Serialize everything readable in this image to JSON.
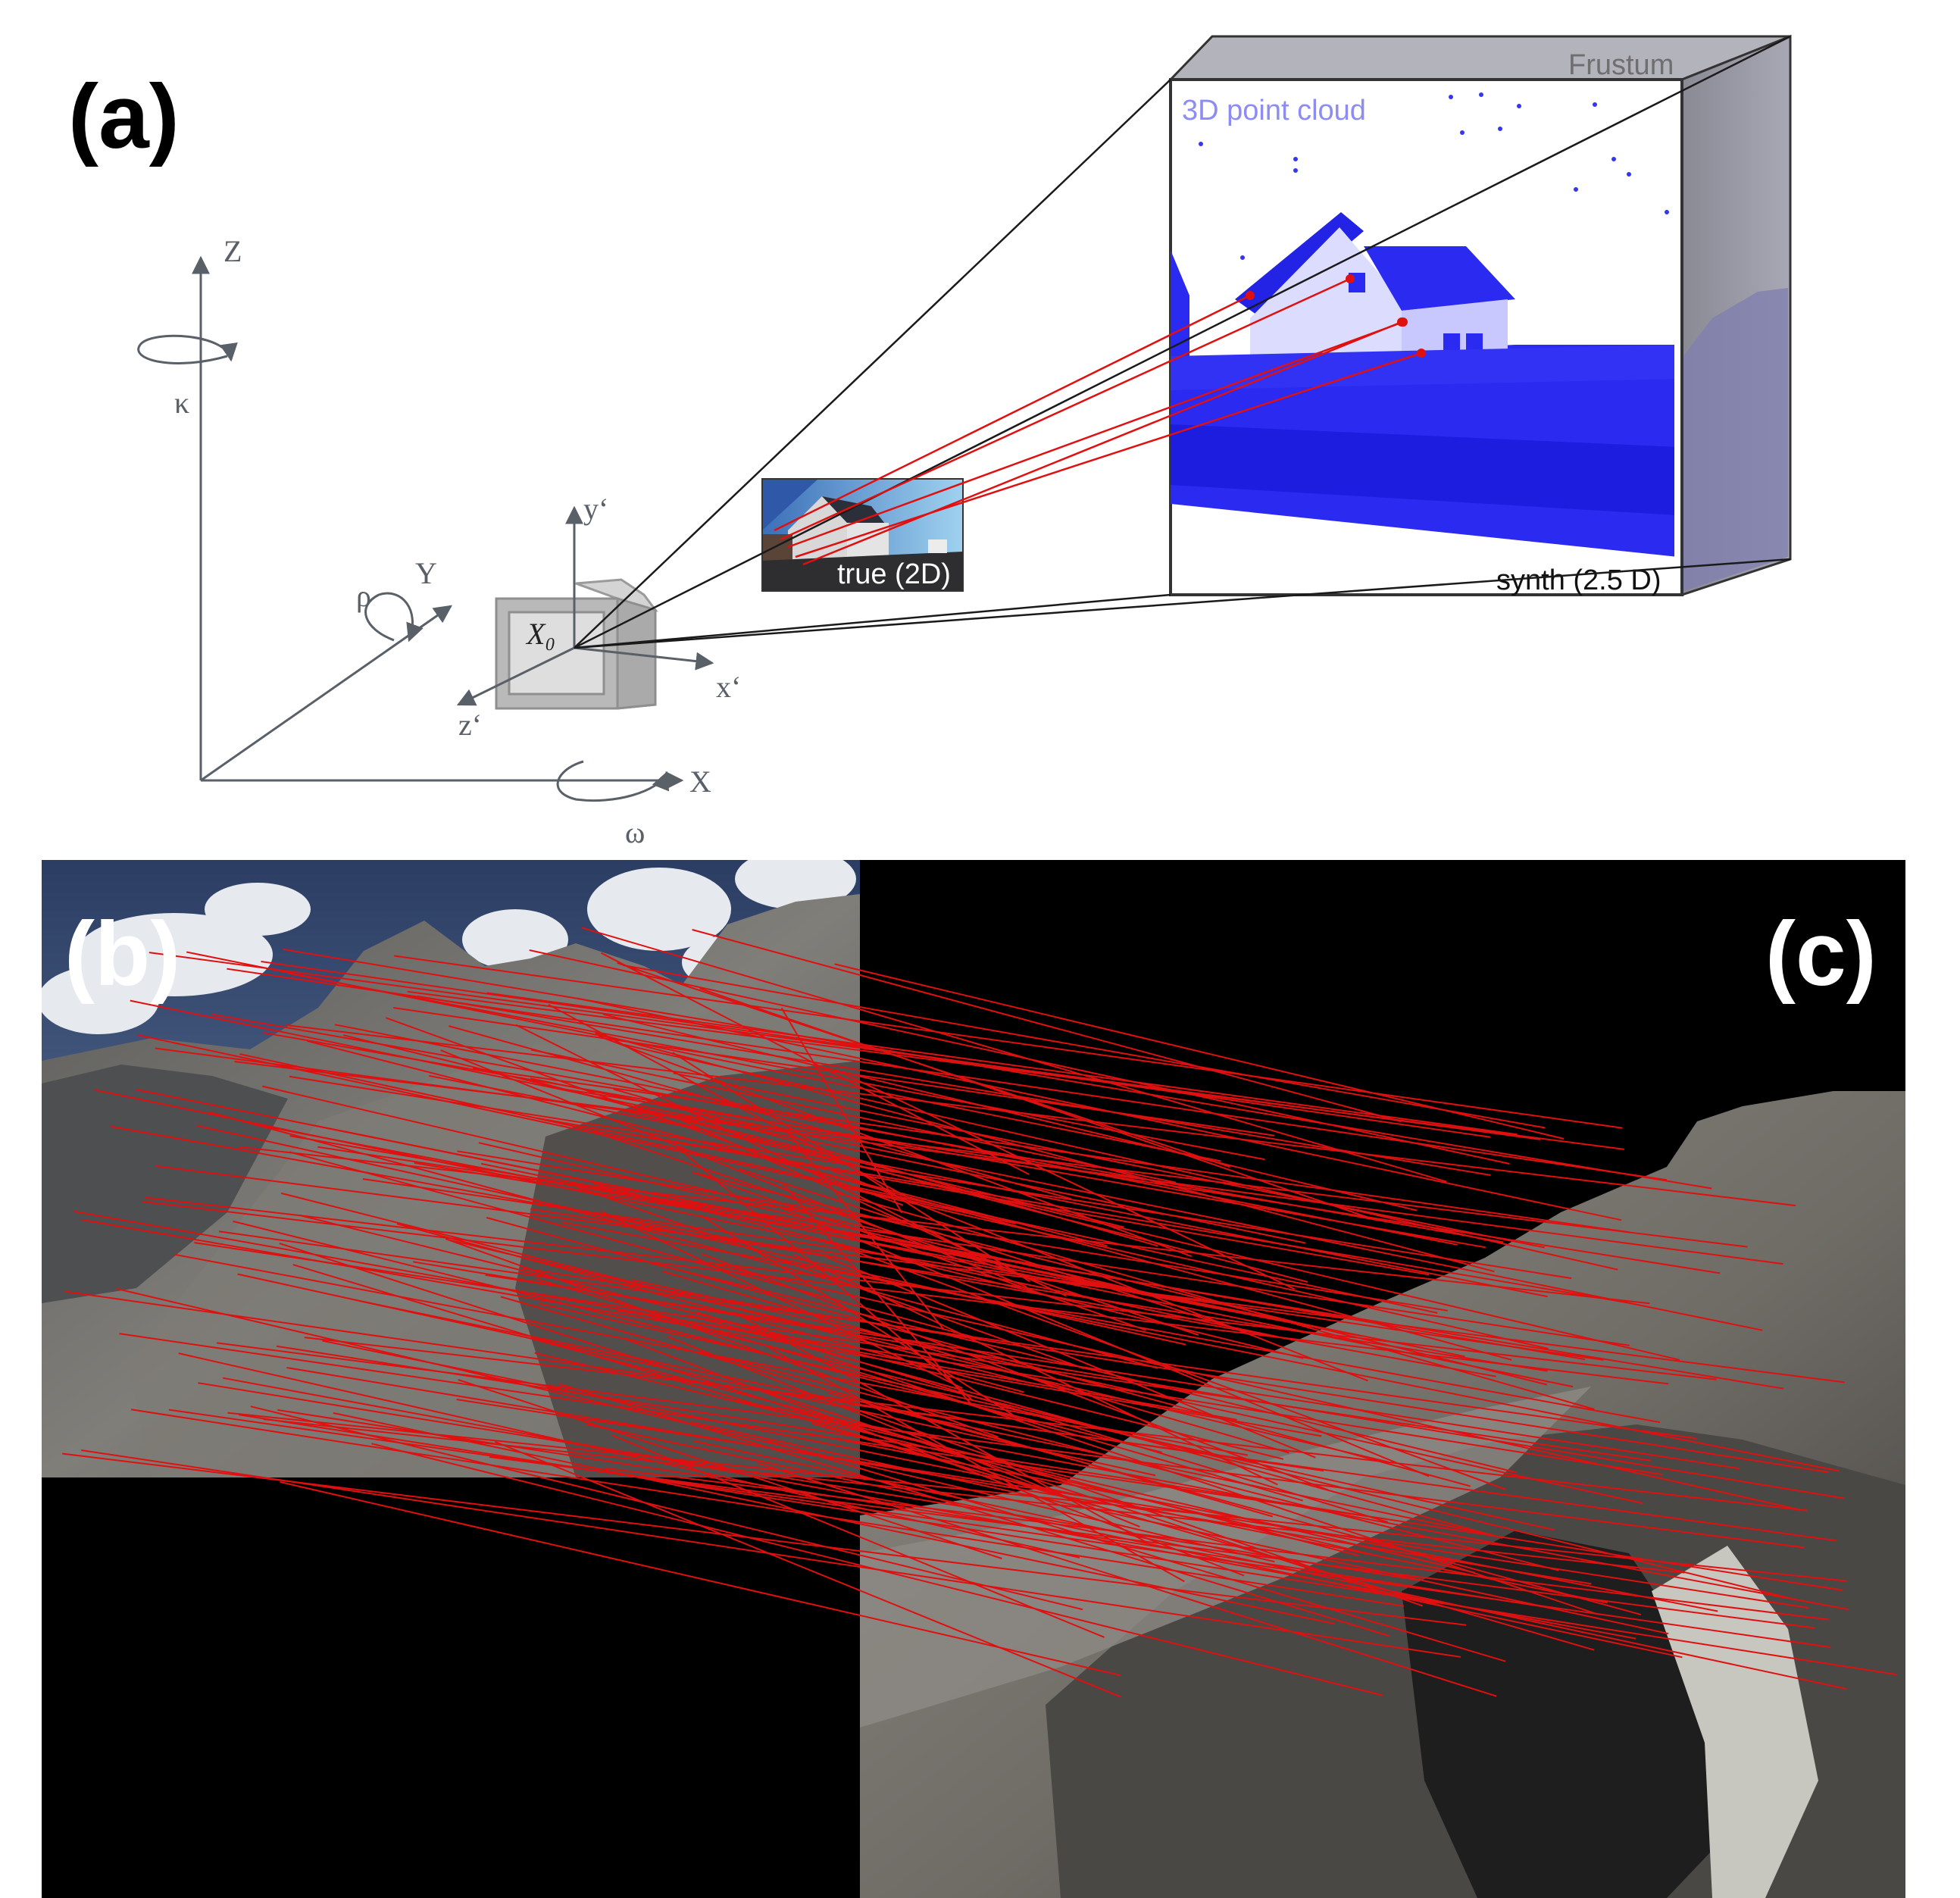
{
  "panels": {
    "a": {
      "label": "(a)"
    },
    "b": {
      "label": "(b)"
    },
    "c": {
      "label": "(c)"
    }
  },
  "axes": {
    "world": {
      "z": "Z",
      "y": "Y",
      "x": "X",
      "kappa": "κ",
      "rho": "ρ",
      "omega": "ω"
    },
    "camera": {
      "y": "y‘",
      "x": "x‘",
      "z": "z‘",
      "origin": "X₀"
    }
  },
  "frustum": {
    "title": "Frustum",
    "cloud_label": "3D point cloud",
    "synth_label": "synth (2.5 D)"
  },
  "true_image": {
    "label": "true (2D)"
  },
  "colors": {
    "match_line": "#e01010",
    "point_cloud": "#2a2af0",
    "cloud_label": "#8c8cf2",
    "axis": "#5a6068",
    "frame": "#333333"
  },
  "matches": {
    "a_count": 5,
    "bc_count": 180
  }
}
